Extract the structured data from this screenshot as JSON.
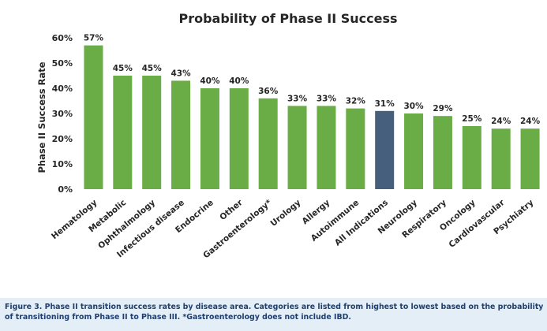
{
  "chart_data": {
    "type": "bar",
    "title": "Probability of Phase II Success",
    "xlabel": "",
    "ylabel": "Phase II Success Rate",
    "categories": [
      "Hematology",
      "Metabolic",
      "Ophthalmology",
      "Infectious disease",
      "Endocrine",
      "Other",
      "Gastroenterology*",
      "Urology",
      "Allergy",
      "Autoimmune",
      "All Indications",
      "Neurology",
      "Respiratory",
      "Oncology",
      "Cardiovascular",
      "Psychiatry"
    ],
    "values": [
      57,
      45,
      45,
      43,
      40,
      40,
      36,
      33,
      33,
      32,
      31,
      30,
      29,
      25,
      24,
      24
    ],
    "value_labels": [
      "57%",
      "45%",
      "45%",
      "43%",
      "40%",
      "40%",
      "36%",
      "33%",
      "33%",
      "32%",
      "31%",
      "30%",
      "29%",
      "25%",
      "24%",
      "24%"
    ],
    "ylim": [
      0,
      60
    ],
    "yticks": [
      0,
      10,
      20,
      30,
      40,
      50,
      60
    ],
    "ytick_labels": [
      "0%",
      "10%",
      "20%",
      "30%",
      "40%",
      "50%",
      "60%"
    ],
    "grid": false,
    "colors": {
      "bar": "#6aac45",
      "highlight_bar": "#455f7c",
      "text": "#262626",
      "axis": "#7f7f7f"
    },
    "highlight_category": "All Indications"
  },
  "caption": "Figure 3. Phase II transition success rates by disease area. Categories are listed from highest to lowest based on the probability of transitioning from Phase II to Phase III. *Gastroenterology does not include IBD."
}
